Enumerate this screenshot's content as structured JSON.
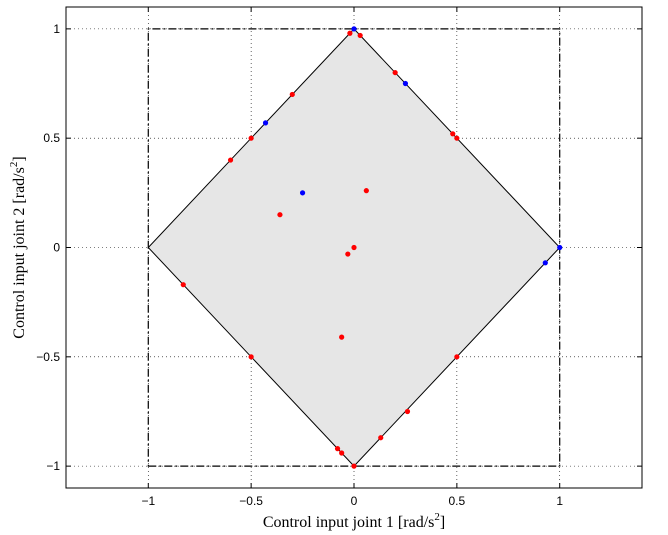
{
  "chart_data": {
    "type": "scatter",
    "xlabel": "Control input joint 1 [rad/s",
    "ylabel": "Control input joint 2 [rad/s",
    "xlabel_sup": "2",
    "ylabel_sup": "2",
    "xlabel_close": "]",
    "ylabel_close": "]",
    "xlim": [
      -1.4,
      1.4
    ],
    "ylim": [
      -1.1,
      1.1
    ],
    "xticks": [
      -1,
      -0.5,
      0,
      0.5,
      1
    ],
    "yticks": [
      -1,
      -0.5,
      0,
      0.5,
      1
    ],
    "xtick_labels": [
      "−1",
      "−0.5",
      "0",
      "0.5",
      "1"
    ],
    "ytick_labels": [
      "−1",
      "−0.5",
      "0",
      "0.5",
      "1"
    ],
    "grid": true,
    "feasible_region": [
      [
        0,
        1
      ],
      [
        1,
        0
      ],
      [
        0,
        -1
      ],
      [
        -1,
        0
      ]
    ],
    "bound_box": [
      [
        -1,
        -1
      ],
      [
        1,
        -1
      ],
      [
        1,
        1
      ],
      [
        -1,
        1
      ]
    ],
    "series": [
      {
        "color": "#ff0000",
        "points": [
          [
            -0.02,
            0.98
          ],
          [
            0.03,
            0.97
          ],
          [
            0.2,
            0.8
          ],
          [
            -0.3,
            0.7
          ],
          [
            -0.5,
            0.5
          ],
          [
            -0.6,
            0.4
          ],
          [
            0.48,
            0.52
          ],
          [
            0.5,
            0.5
          ],
          [
            0.06,
            0.26
          ],
          [
            -0.36,
            0.15
          ],
          [
            0.0,
            0.0
          ],
          [
            -0.03,
            -0.03
          ],
          [
            -0.83,
            -0.17
          ],
          [
            -0.5,
            -0.5
          ],
          [
            0.5,
            -0.5
          ],
          [
            -0.06,
            -0.41
          ],
          [
            0.26,
            -0.75
          ],
          [
            0.13,
            -0.87
          ],
          [
            -0.08,
            -0.92
          ],
          [
            -0.06,
            -0.94
          ],
          [
            0.0,
            -1.0
          ]
        ]
      },
      {
        "color": "#0000ff",
        "points": [
          [
            0.0,
            1.0
          ],
          [
            0.25,
            0.75
          ],
          [
            -0.43,
            0.57
          ],
          [
            -0.25,
            0.25
          ],
          [
            1.0,
            0.0
          ],
          [
            0.93,
            -0.07
          ]
        ]
      }
    ]
  }
}
